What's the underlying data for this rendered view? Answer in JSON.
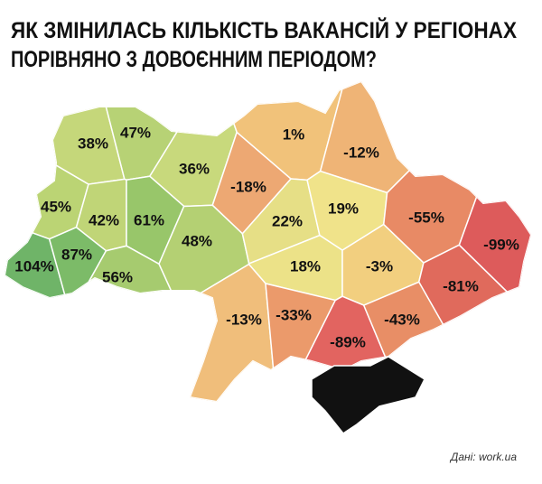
{
  "title": [
    "ЯК ЗМІНИЛАСЬ КІЛЬКІСТЬ ВАКАНСІЙ У РЕГІОНАХ",
    "ПОРІВНЯНО З ДОВОЄННИМ ПЕРІОДОМ?"
  ],
  "source": "Дані: work.ua",
  "regions": [
    {
      "value": 38,
      "value_label": "38%",
      "color": "#c5d77a"
    },
    {
      "value": 47,
      "value_label": "47%",
      "color": "#b7d275"
    },
    {
      "value": 36,
      "value_label": "36%",
      "color": "#c8d97c"
    },
    {
      "value": -18,
      "value_label": "-18%",
      "color": "#eda873"
    },
    {
      "value": 1,
      "value_label": "1%",
      "color": "#f1c27a"
    },
    {
      "value": -12,
      "value_label": "-12%",
      "color": "#efb476"
    },
    {
      "value": 45,
      "value_label": "45%",
      "color": "#bbd474"
    },
    {
      "value": 42,
      "value_label": "42%",
      "color": "#c0d577"
    },
    {
      "value": 61,
      "value_label": "61%",
      "color": "#98c66a"
    },
    {
      "value": 48,
      "value_label": "48%",
      "color": "#b4d073"
    },
    {
      "value": 104,
      "value_label": "104%",
      "color": "#6fb468"
    },
    {
      "value": 87,
      "value_label": "87%",
      "color": "#7cbb68"
    },
    {
      "value": 56,
      "value_label": "56%",
      "color": "#a6cb6f"
    },
    {
      "value": 22,
      "value_label": "22%",
      "color": "#e6df86"
    },
    {
      "value": 19,
      "value_label": "19%",
      "color": "#f0e38a"
    },
    {
      "value": -55,
      "value_label": "-55%",
      "color": "#e88a65"
    },
    {
      "value": -99,
      "value_label": "-99%",
      "color": "#dd5b5b"
    },
    {
      "value": 18,
      "value_label": "18%",
      "color": "#ece288"
    },
    {
      "value": -3,
      "value_label": "-3%",
      "color": "#f2cf7f"
    },
    {
      "value": -81,
      "value_label": "-81%",
      "color": "#e06a5c"
    },
    {
      "value": -13,
      "value_label": "-13%",
      "color": "#f0be7b"
    },
    {
      "value": -33,
      "value_label": "-33%",
      "color": "#eb9a6b"
    },
    {
      "value": -89,
      "value_label": "-89%",
      "color": "#e26460"
    },
    {
      "value": -43,
      "value_label": "-43%",
      "color": "#e88e66"
    }
  ]
}
